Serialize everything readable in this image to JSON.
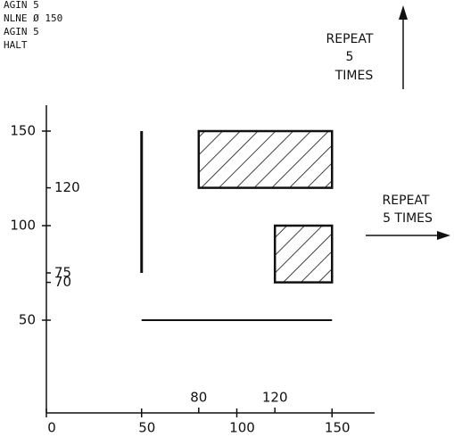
{
  "code": [
    "AGIN 5",
    "NLNE Ø 150",
    "AGIN 5",
    "HALT"
  ],
  "notes": {
    "top": [
      "REPEAT",
      "5",
      "TIMES"
    ],
    "right": [
      "REPEAT",
      "5 TIMES"
    ]
  },
  "axes": {
    "xticks": [
      0,
      50,
      100,
      150
    ],
    "yticks": [
      50,
      100,
      150
    ],
    "xmarks": [
      80,
      120
    ],
    "ymarks": [
      120,
      75,
      70
    ]
  }
}
